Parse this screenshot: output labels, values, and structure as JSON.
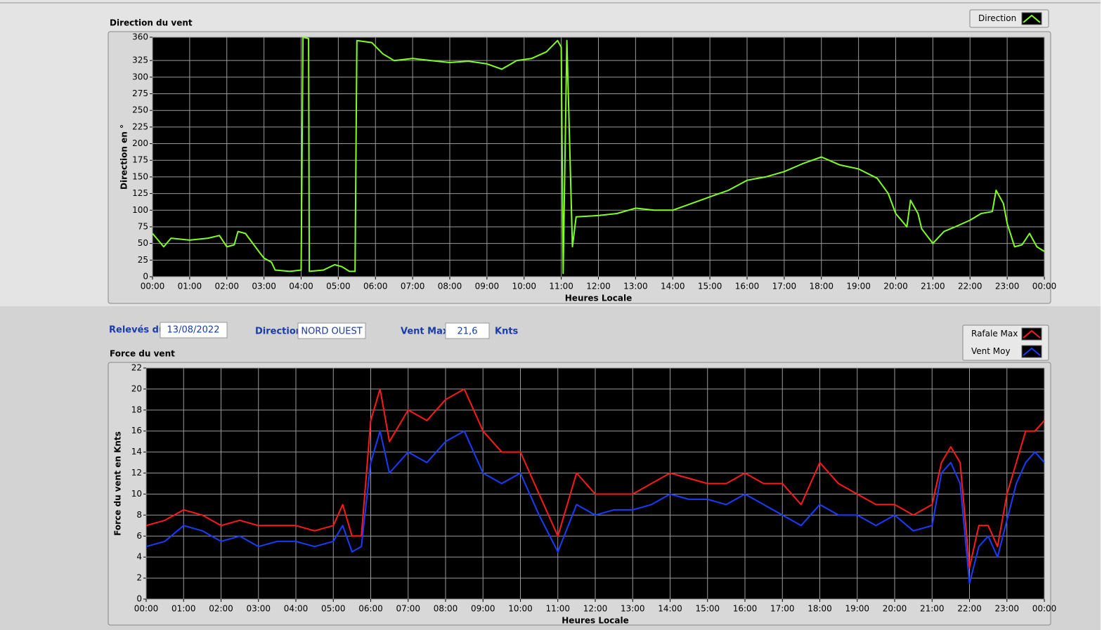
{
  "chart_data": [
    {
      "type": "line",
      "title": "Direction du vent",
      "x_label": "Heures Locale",
      "y_label": "Direction en °",
      "x": [
        0,
        0.3,
        0.5,
        1.0,
        1.5,
        1.8,
        2.0,
        2.2,
        2.3,
        2.5,
        2.7,
        2.9,
        3.0,
        3.2,
        3.3,
        3.7,
        4.0,
        4.05,
        4.2,
        4.22,
        4.6,
        4.9,
        5.1,
        5.3,
        5.45,
        5.5,
        5.9,
        6.2,
        6.5,
        7.0,
        7.5,
        8.0,
        8.5,
        9.0,
        9.4,
        9.8,
        10.2,
        10.6,
        10.9,
        11.0,
        11.05,
        11.15,
        11.3,
        11.4,
        12.0,
        12.5,
        13.0,
        13.5,
        14.0,
        14.5,
        15.0,
        15.5,
        16.0,
        16.5,
        17.0,
        17.5,
        18.0,
        18.5,
        19.0,
        19.5,
        19.8,
        20.0,
        20.3,
        20.4,
        20.6,
        20.7,
        21.0,
        21.3,
        21.6,
        22.0,
        22.3,
        22.6,
        22.7,
        22.9,
        23.0,
        23.2,
        23.4,
        23.6,
        23.8,
        24
      ],
      "xlim": [
        0,
        24
      ],
      "xticks": [
        {
          "value": 0,
          "label": "00:00"
        },
        {
          "value": 1,
          "label": "01:00"
        },
        {
          "value": 2,
          "label": "02:00"
        },
        {
          "value": 3,
          "label": "03:00"
        },
        {
          "value": 4,
          "label": "04:00"
        },
        {
          "value": 5,
          "label": "05:00"
        },
        {
          "value": 6,
          "label": "06:00"
        },
        {
          "value": 7,
          "label": "07:00"
        },
        {
          "value": 8,
          "label": "08:00"
        },
        {
          "value": 9,
          "label": "09:00"
        },
        {
          "value": 10,
          "label": "10:00"
        },
        {
          "value": 11,
          "label": "11:00"
        },
        {
          "value": 12,
          "label": "12:00"
        },
        {
          "value": 13,
          "label": "13:00"
        },
        {
          "value": 14,
          "label": "14:00"
        },
        {
          "value": 15,
          "label": "15:00"
        },
        {
          "value": 16,
          "label": "16:00"
        },
        {
          "value": 17,
          "label": "17:00"
        },
        {
          "value": 18,
          "label": "18:00"
        },
        {
          "value": 19,
          "label": "19:00"
        },
        {
          "value": 20,
          "label": "20:00"
        },
        {
          "value": 21,
          "label": "21:00"
        },
        {
          "value": 22,
          "label": "22:00"
        },
        {
          "value": 23,
          "label": "23:00"
        },
        {
          "value": 24,
          "label": "00:00"
        }
      ],
      "ylim": [
        0,
        360
      ],
      "yticks": [
        0,
        25,
        50,
        75,
        100,
        125,
        150,
        175,
        200,
        225,
        250,
        275,
        300,
        325,
        360
      ],
      "grid": true,
      "legend": "top-right",
      "series": [
        {
          "name": "Direction",
          "color": "#80ff20",
          "values": [
            65,
            45,
            58,
            55,
            58,
            62,
            45,
            48,
            68,
            65,
            50,
            35,
            28,
            22,
            10,
            8,
            10,
            360,
            358,
            8,
            10,
            18,
            15,
            8,
            8,
            355,
            352,
            335,
            325,
            328,
            325,
            322,
            324,
            320,
            312,
            325,
            328,
            338,
            355,
            345,
            5,
            355,
            45,
            90,
            92,
            95,
            103,
            100,
            100,
            110,
            120,
            130,
            145,
            150,
            158,
            170,
            180,
            168,
            162,
            148,
            125,
            95,
            75,
            115,
            95,
            72,
            50,
            68,
            75,
            85,
            95,
            98,
            130,
            110,
            80,
            45,
            48,
            65,
            45,
            38
          ]
        }
      ]
    },
    {
      "type": "line",
      "title": "Force du vent",
      "x_label": "Heures Locale",
      "y_label": "Force du vent en Knts",
      "x": [
        0,
        0.5,
        1.0,
        1.5,
        2.0,
        2.5,
        3.0,
        3.5,
        4.0,
        4.5,
        5.0,
        5.25,
        5.5,
        5.75,
        6.0,
        6.25,
        6.5,
        7.0,
        7.5,
        8.0,
        8.5,
        9.0,
        9.5,
        10.0,
        10.5,
        11.0,
        11.5,
        12.0,
        12.5,
        13.0,
        13.5,
        14.0,
        14.5,
        15.0,
        15.5,
        16.0,
        16.5,
        17.0,
        17.5,
        18.0,
        18.5,
        19.0,
        19.5,
        20.0,
        20.5,
        21.0,
        21.25,
        21.5,
        21.75,
        22.0,
        22.25,
        22.5,
        22.75,
        23.0,
        23.25,
        23.5,
        23.75,
        24
      ],
      "xlim": [
        0,
        24
      ],
      "xticks": [
        {
          "value": 0,
          "label": "00:00"
        },
        {
          "value": 1,
          "label": "01:00"
        },
        {
          "value": 2,
          "label": "02:00"
        },
        {
          "value": 3,
          "label": "03:00"
        },
        {
          "value": 4,
          "label": "04:00"
        },
        {
          "value": 5,
          "label": "05:00"
        },
        {
          "value": 6,
          "label": "06:00"
        },
        {
          "value": 7,
          "label": "07:00"
        },
        {
          "value": 8,
          "label": "08:00"
        },
        {
          "value": 9,
          "label": "09:00"
        },
        {
          "value": 10,
          "label": "10:00"
        },
        {
          "value": 11,
          "label": "11:00"
        },
        {
          "value": 12,
          "label": "12:00"
        },
        {
          "value": 13,
          "label": "13:00"
        },
        {
          "value": 14,
          "label": "14:00"
        },
        {
          "value": 15,
          "label": "15:00"
        },
        {
          "value": 16,
          "label": "16:00"
        },
        {
          "value": 17,
          "label": "17:00"
        },
        {
          "value": 18,
          "label": "18:00"
        },
        {
          "value": 19,
          "label": "19:00"
        },
        {
          "value": 20,
          "label": "20:00"
        },
        {
          "value": 21,
          "label": "21:00"
        },
        {
          "value": 22,
          "label": "22:00"
        },
        {
          "value": 23,
          "label": "23:00"
        },
        {
          "value": 24,
          "label": "00:00"
        }
      ],
      "ylim": [
        0,
        22
      ],
      "yticks": [
        0,
        2,
        4,
        6,
        8,
        10,
        12,
        14,
        16,
        18,
        20,
        22
      ],
      "grid": true,
      "legend": "top-right",
      "series": [
        {
          "name": "Rafale Max",
          "color": "#ff1a1a",
          "values": [
            7,
            7.5,
            8.5,
            8,
            7,
            7.5,
            7,
            7,
            7,
            6.5,
            7,
            9,
            6,
            6,
            17,
            20,
            15,
            18,
            17,
            19,
            20,
            16,
            14,
            14,
            10,
            6,
            12,
            10,
            10,
            10,
            11,
            12,
            11.5,
            11,
            11,
            12,
            11,
            11,
            9,
            13,
            11,
            10,
            9,
            9,
            8,
            9,
            13,
            14.5,
            13,
            3,
            7,
            7,
            5,
            10,
            13,
            16,
            16,
            17
          ]
        },
        {
          "name": "Vent Moy",
          "color": "#1a3cff",
          "values": [
            5,
            5.5,
            7,
            6.5,
            5.5,
            6,
            5,
            5.5,
            5.5,
            5,
            5.5,
            7,
            4.5,
            5,
            13,
            16,
            12,
            14,
            13,
            15,
            16,
            12,
            11,
            12,
            8,
            4.5,
            9,
            8,
            8.5,
            8.5,
            9,
            10,
            9.5,
            9.5,
            9,
            10,
            9,
            8,
            7,
            9,
            8,
            8,
            7,
            8,
            6.5,
            7,
            12,
            13,
            11,
            1.5,
            5,
            6,
            4,
            7.5,
            11,
            13,
            14,
            13
          ]
        }
      ]
    }
  ],
  "controls": {
    "date_label": "Relevés du",
    "date": "13/08/2022",
    "direction_label": "Direction",
    "direction": "NORD OUEST",
    "max_label": "Vent Max",
    "max": "21,6",
    "unit": "Knts"
  }
}
